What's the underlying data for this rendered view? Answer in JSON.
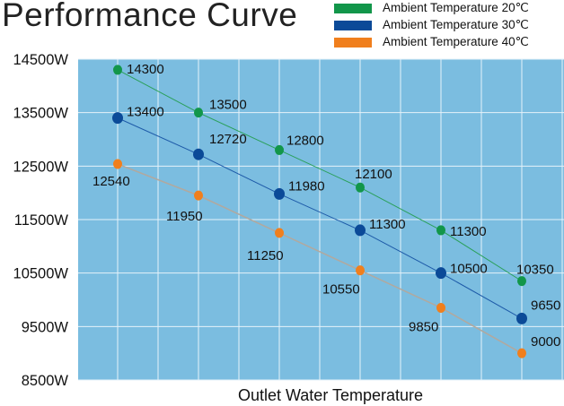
{
  "chart_data": {
    "type": "line",
    "title": "Performance Curve",
    "xlabel": "Outlet Water Temperature",
    "ylabel": "",
    "ylim": [
      8500,
      14500
    ],
    "yticks": [
      "14500W",
      "13500W",
      "12500W",
      "11500W",
      "10500W",
      "9500W",
      "8500W"
    ],
    "ytick_values": [
      14500,
      13500,
      12500,
      11500,
      10500,
      9500,
      8500
    ],
    "x": [
      1,
      2,
      3,
      4,
      5,
      6
    ],
    "grid": true,
    "legend_position": "top-right",
    "series": [
      {
        "name": "Ambient Temperature 20℃",
        "color": "#12964a",
        "line_color": "#2aa05a",
        "values": [
          14300,
          13500,
          12800,
          12100,
          11300,
          10350
        ]
      },
      {
        "name": "Ambient Temperature 30℃",
        "color": "#0b4a98",
        "line_color": "#1d5aa8",
        "values": [
          13400,
          12720,
          11980,
          11300,
          10500,
          9650
        ]
      },
      {
        "name": "Ambient Temperature 40℃",
        "color": "#f07f1d",
        "line_color": "#b0a9a0",
        "values": [
          12540,
          11950,
          11250,
          10550,
          9850,
          9000
        ]
      }
    ]
  }
}
